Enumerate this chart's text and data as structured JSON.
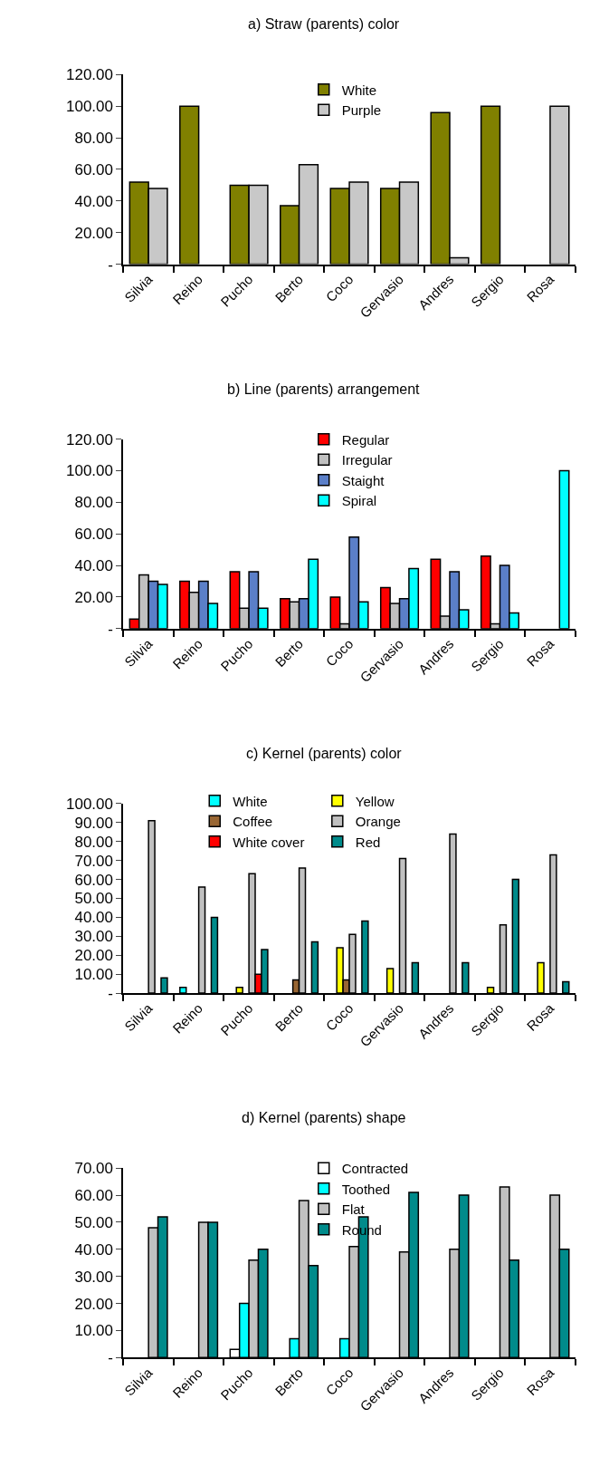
{
  "chart_data": [
    {
      "type": "bar",
      "title": "a) Straw (parents) color",
      "categories": [
        "Silvia",
        "Reino",
        "Pucho",
        "Berto",
        "Coco",
        "Gervasio",
        "Andres",
        "Sergio",
        "Rosa"
      ],
      "ylim": [
        0,
        120
      ],
      "yticks": [
        {
          "value": 0,
          "label": "-"
        },
        {
          "value": 20,
          "label": "20.00"
        },
        {
          "value": 40,
          "label": "40.00"
        },
        {
          "value": 60,
          "label": "60.00"
        },
        {
          "value": 80,
          "label": "80.00"
        },
        {
          "value": 100,
          "label": "100.00"
        },
        {
          "value": 120,
          "label": "120.00"
        }
      ],
      "legend": "top",
      "series": [
        {
          "name": "White",
          "color": "#808000",
          "values": [
            52,
            100,
            50,
            37,
            48,
            48,
            96,
            100,
            null
          ]
        },
        {
          "name": "Purple",
          "color": "#c8c8c8",
          "values": [
            48,
            null,
            50,
            63,
            52,
            52,
            4,
            null,
            100
          ]
        }
      ]
    },
    {
      "type": "bar",
      "title": "b) Line (parents) arrangement",
      "categories": [
        "Silvia",
        "Reino",
        "Pucho",
        "Berto",
        "Coco",
        "Gervasio",
        "Andres",
        "Sergio",
        "Rosa"
      ],
      "ylim": [
        0,
        120
      ],
      "yticks": [
        {
          "value": 0,
          "label": "-"
        },
        {
          "value": 20,
          "label": "20.00"
        },
        {
          "value": 40,
          "label": "40.00"
        },
        {
          "value": 60,
          "label": "60.00"
        },
        {
          "value": 80,
          "label": "80.00"
        },
        {
          "value": 100,
          "label": "100.00"
        },
        {
          "value": 120,
          "label": "120.00"
        }
      ],
      "legend": "top",
      "series": [
        {
          "name": "Regular",
          "color": "#ff0000",
          "values": [
            6,
            30,
            36,
            19,
            20,
            26,
            44,
            46,
            null
          ]
        },
        {
          "name": "Irregular",
          "color": "#c0c0c0",
          "values": [
            34,
            23,
            13,
            17,
            3,
            16,
            8,
            3,
            null
          ]
        },
        {
          "name": "Staight",
          "color": "#5b7fc8",
          "values": [
            30,
            30,
            36,
            19,
            58,
            19,
            36,
            40,
            null
          ]
        },
        {
          "name": "Spiral",
          "color": "#00ffff",
          "values": [
            28,
            16,
            13,
            44,
            17,
            38,
            12,
            10,
            100
          ]
        }
      ]
    },
    {
      "type": "bar",
      "title": "c) Kernel (parents) color",
      "categories": [
        "Silvia",
        "Reino",
        "Pucho",
        "Berto",
        "Coco",
        "Gervasio",
        "Andres",
        "Sergio",
        "Rosa"
      ],
      "ylim": [
        0,
        100
      ],
      "yticks": [
        {
          "value": 0,
          "label": "-"
        },
        {
          "value": 10,
          "label": "10.00"
        },
        {
          "value": 20,
          "label": "20.00"
        },
        {
          "value": 30,
          "label": "30.00"
        },
        {
          "value": 40,
          "label": "40.00"
        },
        {
          "value": 50,
          "label": "50.00"
        },
        {
          "value": 60,
          "label": "60.00"
        },
        {
          "value": 70,
          "label": "70.00"
        },
        {
          "value": 80,
          "label": "80.00"
        },
        {
          "value": 90,
          "label": "90.00"
        },
        {
          "value": 100,
          "label": "100.00"
        }
      ],
      "legend": "top",
      "series": [
        {
          "name": "White",
          "color": "#00ffff",
          "values": [
            null,
            3,
            null,
            null,
            null,
            null,
            null,
            null,
            null
          ]
        },
        {
          "name": "Yellow",
          "color": "#ffff00",
          "values": [
            null,
            null,
            3,
            null,
            24,
            13,
            null,
            3,
            16
          ]
        },
        {
          "name": "Coffee",
          "color": "#996633",
          "values": [
            null,
            null,
            null,
            7,
            7,
            null,
            null,
            null,
            null
          ]
        },
        {
          "name": "Orange",
          "color": "#c0c0c0",
          "values": [
            91,
            56,
            63,
            66,
            31,
            71,
            84,
            36,
            73
          ]
        },
        {
          "name": "White cover",
          "color": "#ff0000",
          "values": [
            null,
            null,
            10,
            null,
            null,
            null,
            null,
            null,
            null
          ]
        },
        {
          "name": "Red",
          "color": "#008b8b",
          "values": [
            8,
            40,
            23,
            27,
            38,
            16,
            16,
            60,
            6
          ]
        }
      ]
    },
    {
      "type": "bar",
      "title": "d) Kernel (parents) shape",
      "categories": [
        "Silvia",
        "Reino",
        "Pucho",
        "Berto",
        "Coco",
        "Gervasio",
        "Andres",
        "Sergio",
        "Rosa"
      ],
      "ylim": [
        0,
        70
      ],
      "yticks": [
        {
          "value": 0,
          "label": "-"
        },
        {
          "value": 10,
          "label": "10.00"
        },
        {
          "value": 20,
          "label": "20.00"
        },
        {
          "value": 30,
          "label": "30.00"
        },
        {
          "value": 40,
          "label": "40.00"
        },
        {
          "value": 50,
          "label": "50.00"
        },
        {
          "value": 60,
          "label": "60.00"
        },
        {
          "value": 70,
          "label": "70.00"
        }
      ],
      "legend": "top",
      "series": [
        {
          "name": "Contracted",
          "color": "#ffffff",
          "values": [
            null,
            null,
            3,
            null,
            null,
            null,
            null,
            null,
            null
          ]
        },
        {
          "name": "Toothed",
          "color": "#00ffff",
          "values": [
            null,
            null,
            20,
            7,
            7,
            null,
            null,
            null,
            null
          ]
        },
        {
          "name": "Flat",
          "color": "#c0c0c0",
          "values": [
            48,
            50,
            36,
            58,
            41,
            39,
            40,
            63,
            60
          ]
        },
        {
          "name": "Round",
          "color": "#008b8b",
          "values": [
            52,
            50,
            40,
            34,
            52,
            61,
            60,
            36,
            40
          ]
        }
      ]
    }
  ]
}
